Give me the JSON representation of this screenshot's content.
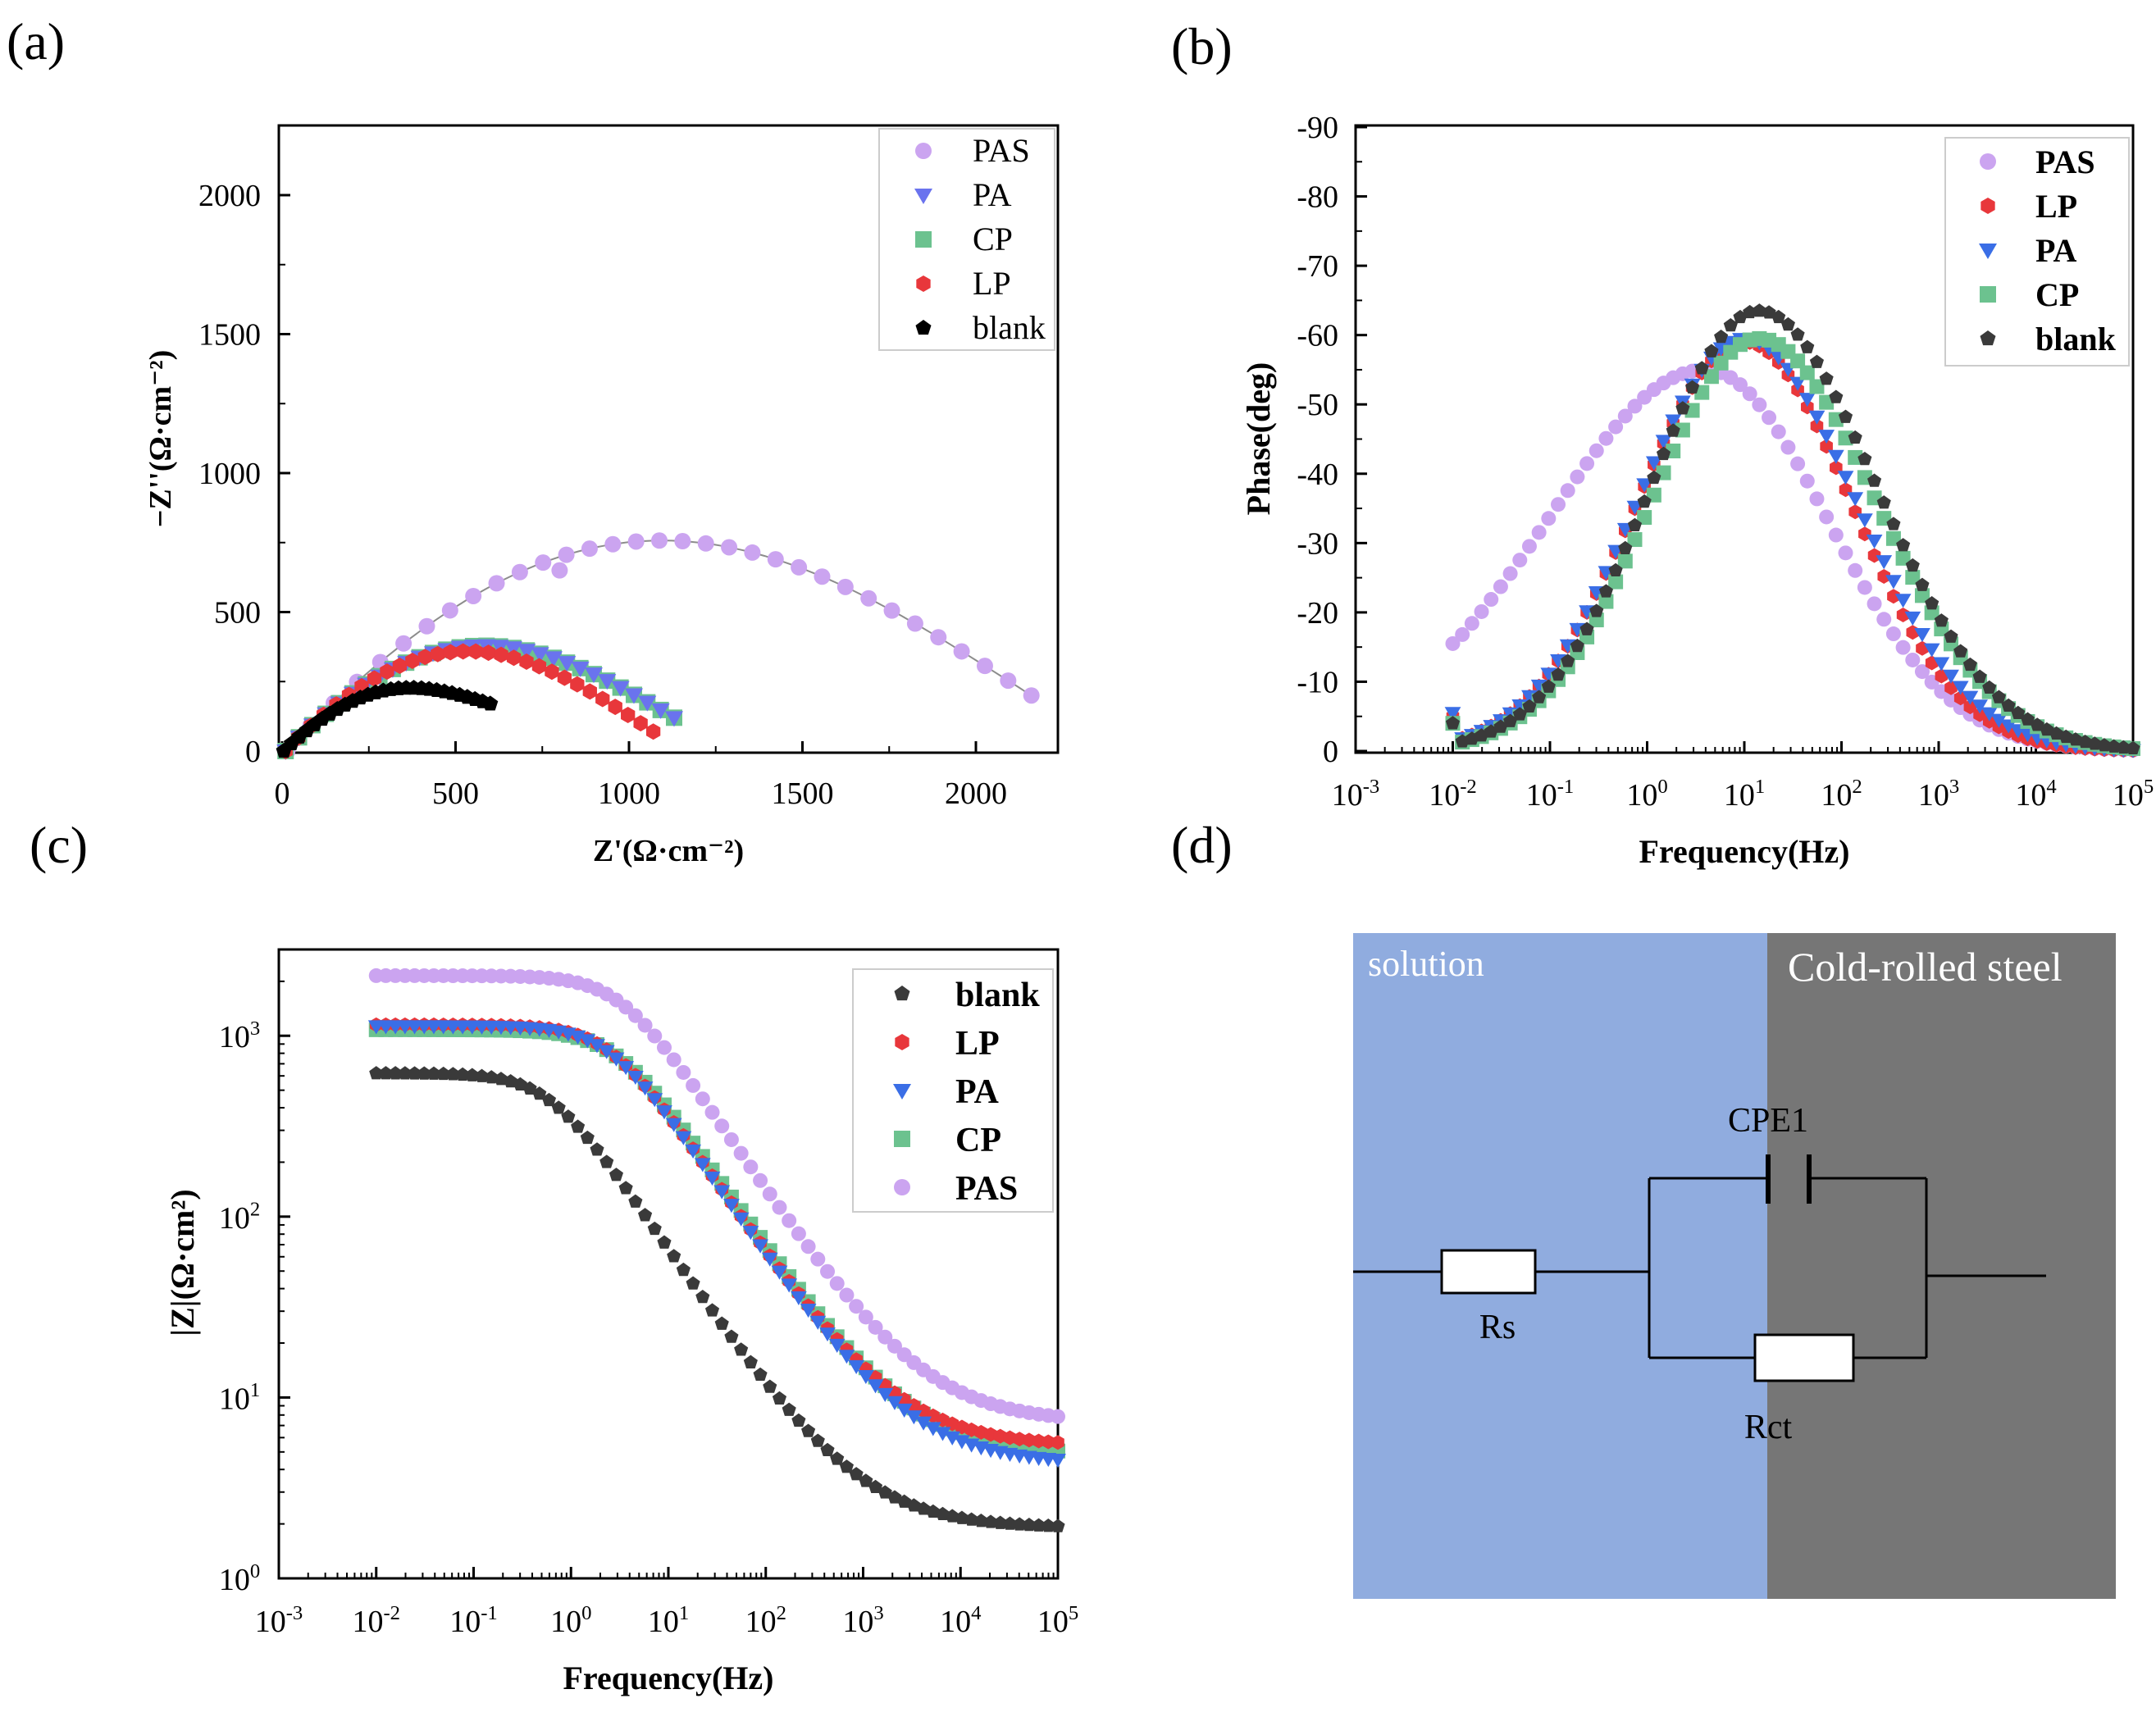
{
  "panel_labels": [
    "(a)",
    "(b)",
    "(c)",
    "(d)"
  ],
  "colors": {
    "PAS": "#cba4f0",
    "PA": "#3a6ee6",
    "PA_a": "#6a73ee",
    "CP": "#6cc28f",
    "LP": "#e8373b",
    "blank": "#3a3a3a",
    "blank_a": "#000000",
    "fit": "#8c8c8c",
    "solution": "#90acdf",
    "steel": "#767676"
  },
  "chart_data": [
    {
      "id": "a",
      "type": "scatter",
      "title": "",
      "xlabel": "Z'(Ω·cm⁻²)",
      "ylabel": "−Z''(Ω·cm⁻²)",
      "xlim": [
        0,
        2250
      ],
      "ylim": [
        0,
        2250
      ],
      "xticks": [
        0,
        500,
        1000,
        1500,
        2000
      ],
      "yticks": [
        0,
        500,
        1000,
        1500,
        2000
      ],
      "legend_position": "top-right",
      "legend": [
        "PAS",
        "PA",
        "CP",
        "LP",
        "blank"
      ],
      "series": [
        {
          "name": "PAS",
          "semicircle": {
            "r_start": 15,
            "r_end": 2160,
            "z_start": 0,
            "z_end": 200,
            "peak_z": 760,
            "points": 33
          },
          "extra_points": [
            [
              800,
              650
            ]
          ]
        },
        {
          "name": "PA",
          "semicircle": {
            "r_start": 10,
            "r_end": 1130,
            "z_start": 0,
            "z_end": 120,
            "peak_z": 380,
            "points": 30
          }
        },
        {
          "name": "CP",
          "semicircle": {
            "r_start": 10,
            "r_end": 1130,
            "z_start": 0,
            "z_end": 120,
            "peak_z": 380,
            "points": 30
          }
        },
        {
          "name": "LP",
          "semicircle": {
            "r_start": 10,
            "r_end": 1070,
            "z_start": 0,
            "z_end": 70,
            "peak_z": 360,
            "points": 30
          }
        },
        {
          "name": "blank",
          "semicircle": {
            "r_start": 5,
            "r_end": 600,
            "z_start": 0,
            "z_end": 170,
            "peak_z": 220,
            "points": 28
          }
        }
      ]
    },
    {
      "id": "b",
      "type": "scatter",
      "title": "",
      "xlabel": "Frequency(Hz)",
      "ylabel": "Phase(deg)",
      "xscale": "log",
      "xlim": [
        0.001,
        100000
      ],
      "ylim": [
        0,
        -90
      ],
      "yticks": [
        0,
        -10,
        -20,
        -30,
        -40,
        -50,
        -60,
        -70,
        -80,
        -90
      ],
      "xtick_exponents": [
        -3,
        -2,
        -1,
        0,
        1,
        2,
        3,
        4,
        5
      ],
      "legend_position": "top-right",
      "legend": [
        "PAS",
        "LP",
        "PA",
        "CP",
        "blank"
      ],
      "series": [
        {
          "name": "PAS",
          "peak_phase": -55,
          "peak_freq": 4,
          "width_low": 1.55,
          "width_high": 1.2,
          "start_phase": -15.5
        },
        {
          "name": "LP",
          "peak_phase": -59,
          "peak_freq": 10,
          "width_low": 1.05,
          "width_high": 1.05,
          "start_phase": -5
        },
        {
          "name": "PA",
          "peak_phase": -59.5,
          "peak_freq": 10,
          "width_low": 1.05,
          "width_high": 1.1,
          "start_phase": -5.5
        },
        {
          "name": "CP",
          "peak_phase": -59.5,
          "peak_freq": 14,
          "width_low": 1.05,
          "width_high": 1.15,
          "start_phase": -4
        },
        {
          "name": "blank",
          "peak_phase": -63.5,
          "peak_freq": 14,
          "width_low": 1.05,
          "width_high": 1.15,
          "start_phase": -4
        }
      ]
    },
    {
      "id": "c",
      "type": "scatter",
      "title": "",
      "xlabel": "Frequency(Hz)",
      "ylabel": "|Z|(Ω·cm²)",
      "xscale": "log",
      "yscale": "log",
      "xlim": [
        0.001,
        100000
      ],
      "ylim": [
        1,
        3000
      ],
      "xtick_exponents": [
        -3,
        -2,
        -1,
        0,
        1,
        2,
        3,
        4,
        5
      ],
      "ytick_exponents": [
        0,
        1,
        2,
        3
      ],
      "legend_position": "top-right",
      "legend": [
        "blank",
        "LP",
        "PA",
        "CP",
        "PAS"
      ],
      "series": [
        {
          "name": "blank",
          "z_low": 620,
          "z_high": 1.9,
          "f_knee": 0.6
        },
        {
          "name": "LP",
          "z_low": 1150,
          "z_high": 5.4,
          "f_knee": 2.5
        },
        {
          "name": "PA",
          "z_low": 1130,
          "z_high": 4.3,
          "f_knee": 2.5
        },
        {
          "name": "CP",
          "z_low": 1080,
          "z_high": 4.8,
          "f_knee": 3.0
        },
        {
          "name": "PAS",
          "z_low": 2150,
          "z_high": 7.3,
          "f_knee": 3.2
        }
      ]
    }
  ],
  "circuit": {
    "solution_label": "solution",
    "steel_label": "Cold-rolled steel",
    "labels": [
      "Rs",
      "CPE1",
      "Rct"
    ]
  }
}
